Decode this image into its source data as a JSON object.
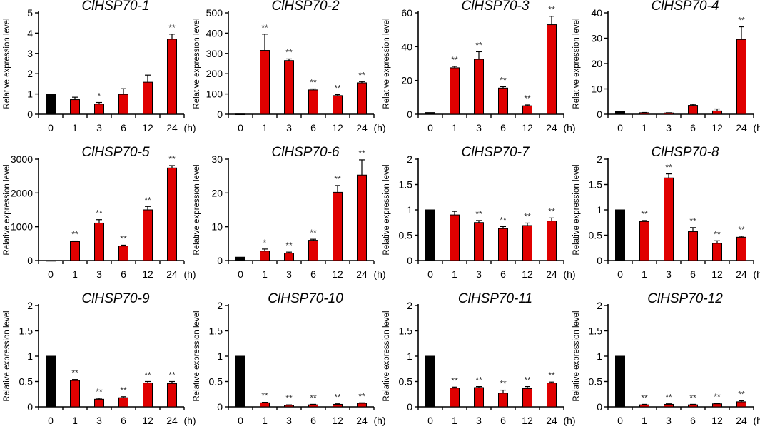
{
  "figure": {
    "ylabel": "Relative expression level",
    "x_unit": "(h)",
    "control_color": "#000000",
    "treatment_color": "#e00000"
  },
  "chart_data": [
    {
      "type": "bar",
      "title": "ClHSP70-1",
      "categories": [
        "0",
        "1",
        "3",
        "6",
        "12",
        "24"
      ],
      "values": [
        1.0,
        0.72,
        0.5,
        0.98,
        1.58,
        3.7
      ],
      "errors": [
        0,
        0.12,
        0.08,
        0.28,
        0.35,
        0.25
      ],
      "significance": [
        "",
        "",
        "*",
        "",
        "",
        "**"
      ],
      "ylim": [
        0,
        5
      ],
      "yticks": [
        0,
        1,
        2,
        3,
        4,
        5
      ],
      "ylabel": "Relative expression level",
      "x_unit": "(h)"
    },
    {
      "type": "bar",
      "title": "ClHSP70-2",
      "categories": [
        "0",
        "1",
        "3",
        "6",
        "12",
        "24"
      ],
      "values": [
        1.0,
        315,
        265,
        120,
        92,
        155
      ],
      "errors": [
        0,
        80,
        8,
        5,
        5,
        6
      ],
      "significance": [
        "",
        "**",
        "**",
        "**",
        "**",
        "**"
      ],
      "ylim": [
        0,
        500
      ],
      "yticks": [
        0,
        100,
        200,
        300,
        400,
        500
      ],
      "ylabel": "Relative expression level",
      "x_unit": "(h)"
    },
    {
      "type": "bar",
      "title": "ClHSP70-3",
      "categories": [
        "0",
        "1",
        "3",
        "6",
        "12",
        "24"
      ],
      "values": [
        1.0,
        27.5,
        32.5,
        15.5,
        5.0,
        53
      ],
      "errors": [
        0,
        0.8,
        4.5,
        0.8,
        0.5,
        5
      ],
      "significance": [
        "",
        "**",
        "**",
        "**",
        "**",
        "**"
      ],
      "ylim": [
        0,
        60
      ],
      "yticks": [
        0,
        20,
        40,
        60
      ],
      "ylabel": "Relative expression level",
      "x_unit": "(h)"
    },
    {
      "type": "bar",
      "title": "ClHSP70-4",
      "categories": [
        "0",
        "1",
        "3",
        "6",
        "12",
        "24"
      ],
      "values": [
        1.0,
        0.6,
        0.5,
        3.5,
        1.3,
        29.5
      ],
      "errors": [
        0,
        0.1,
        0.1,
        0.4,
        0.8,
        5
      ],
      "significance": [
        "",
        "",
        "",
        "",
        "",
        "**"
      ],
      "ylim": [
        0,
        40
      ],
      "yticks": [
        0,
        10,
        20,
        30,
        40
      ],
      "ylabel": "Relative expression level",
      "x_unit": "(h)"
    },
    {
      "type": "bar",
      "title": "ClHSP70-5",
      "categories": [
        "0",
        "1",
        "3",
        "6",
        "12",
        "24"
      ],
      "values": [
        1.0,
        560,
        1110,
        430,
        1500,
        2740
      ],
      "errors": [
        0,
        20,
        100,
        25,
        100,
        70
      ],
      "significance": [
        "",
        "**",
        "**",
        "**",
        "**",
        "**"
      ],
      "ylim": [
        0,
        3000
      ],
      "yticks": [
        0,
        1000,
        2000,
        3000
      ],
      "ylabel": "Relative expression level",
      "x_unit": "(h)"
    },
    {
      "type": "bar",
      "title": "ClHSP70-6",
      "categories": [
        "0",
        "1",
        "3",
        "6",
        "12",
        "24"
      ],
      "values": [
        1.0,
        2.8,
        2.2,
        6.0,
        20.2,
        25.3
      ],
      "errors": [
        0,
        0.6,
        0.3,
        0.3,
        2,
        4.5
      ],
      "significance": [
        "",
        "*",
        "**",
        "**",
        "**",
        "**"
      ],
      "ylim": [
        0,
        30
      ],
      "yticks": [
        0,
        10,
        20,
        30
      ],
      "ylabel": "Relative expression level",
      "x_unit": "(h)"
    },
    {
      "type": "bar",
      "title": "ClHSP70-7",
      "categories": [
        "0",
        "1",
        "3",
        "6",
        "12",
        "24"
      ],
      "values": [
        1.0,
        0.9,
        0.75,
        0.63,
        0.69,
        0.78
      ],
      "errors": [
        0,
        0.07,
        0.04,
        0.04,
        0.05,
        0.06
      ],
      "significance": [
        "",
        "",
        "**",
        "**",
        "**",
        "**"
      ],
      "ylim": [
        0,
        2
      ],
      "yticks": [
        0,
        0.5,
        1,
        1.5,
        2
      ],
      "ylabel": "Relative expression level",
      "x_unit": "(h)"
    },
    {
      "type": "bar",
      "title": "ClHSP70-8",
      "categories": [
        "0",
        "1",
        "3",
        "6",
        "12",
        "24"
      ],
      "values": [
        1.0,
        0.77,
        1.63,
        0.57,
        0.34,
        0.46
      ],
      "errors": [
        0,
        0.02,
        0.08,
        0.08,
        0.05,
        0.02
      ],
      "significance": [
        "",
        "**",
        "**",
        "**",
        "**",
        "**"
      ],
      "ylim": [
        0,
        2
      ],
      "yticks": [
        0,
        0.5,
        1,
        1.5,
        2
      ],
      "ylabel": "Relative expression level",
      "x_unit": "(h)"
    },
    {
      "type": "bar",
      "title": "ClHSP70-9",
      "categories": [
        "0",
        "1",
        "3",
        "6",
        "12",
        "24"
      ],
      "values": [
        1.0,
        0.52,
        0.15,
        0.18,
        0.47,
        0.46
      ],
      "errors": [
        0,
        0.02,
        0.02,
        0.02,
        0.03,
        0.04
      ],
      "significance": [
        "",
        "**",
        "**",
        "**",
        "**",
        "**"
      ],
      "ylim": [
        0,
        2
      ],
      "yticks": [
        0,
        0.5,
        1,
        1.5,
        2
      ],
      "ylabel": "Relative expression level",
      "x_unit": "(h)"
    },
    {
      "type": "bar",
      "title": "ClHSP70-10",
      "categories": [
        "0",
        "1",
        "3",
        "6",
        "12",
        "24"
      ],
      "values": [
        1.0,
        0.08,
        0.03,
        0.04,
        0.05,
        0.07
      ],
      "errors": [
        0,
        0.01,
        0.01,
        0.01,
        0.01,
        0.01
      ],
      "significance": [
        "",
        "**",
        "**",
        "**",
        "**",
        "**"
      ],
      "ylim": [
        0,
        2
      ],
      "yticks": [
        0,
        0.5,
        1,
        1.5,
        2
      ],
      "ylabel": "Relative expression level",
      "x_unit": "(h)"
    },
    {
      "type": "bar",
      "title": "ClHSP70-11",
      "categories": [
        "0",
        "1",
        "3",
        "6",
        "12",
        "24"
      ],
      "values": [
        1.0,
        0.37,
        0.38,
        0.27,
        0.36,
        0.47
      ],
      "errors": [
        0,
        0.02,
        0.02,
        0.06,
        0.04,
        0.02
      ],
      "significance": [
        "",
        "**",
        "**",
        "**",
        "**",
        "**"
      ],
      "ylim": [
        0,
        2
      ],
      "yticks": [
        0,
        0.5,
        1,
        1.5,
        2
      ],
      "ylabel": "Relative expression level",
      "x_unit": "(h)"
    },
    {
      "type": "bar",
      "title": "ClHSP70-12",
      "categories": [
        "0",
        "1",
        "3",
        "6",
        "12",
        "24"
      ],
      "values": [
        1.0,
        0.04,
        0.05,
        0.04,
        0.06,
        0.1
      ],
      "errors": [
        0,
        0.01,
        0.01,
        0.01,
        0.01,
        0.02
      ],
      "significance": [
        "",
        "**",
        "**",
        "**",
        "**",
        "**"
      ],
      "ylim": [
        0,
        2
      ],
      "yticks": [
        0,
        0.5,
        1,
        1.5,
        2
      ],
      "ylabel": "Relative expression level",
      "x_unit": "(h)"
    }
  ]
}
